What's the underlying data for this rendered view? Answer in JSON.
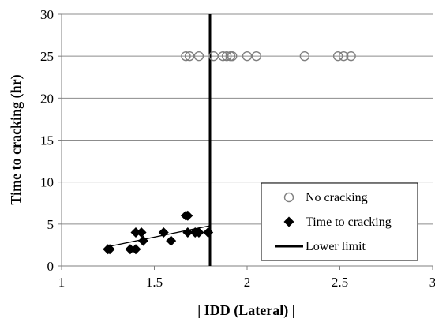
{
  "chart_data": {
    "type": "scatter",
    "xlabel": "| IDD (Lateral) |",
    "ylabel": "Time to cracking (hr)",
    "xlim": [
      1,
      3
    ],
    "ylim": [
      0,
      30
    ],
    "x_ticks": [
      "1",
      "1.5",
      "2",
      "2.5",
      "3"
    ],
    "y_ticks": [
      "0",
      "5",
      "10",
      "15",
      "20",
      "25",
      "30"
    ],
    "grid": "horizontal",
    "legend_position": "bottom-right",
    "series": [
      {
        "name": "No cracking",
        "marker": "open-circle",
        "color": "#7f7f7f",
        "points": [
          [
            1.67,
            25
          ],
          [
            1.69,
            25
          ],
          [
            1.74,
            25
          ],
          [
            1.82,
            25
          ],
          [
            1.87,
            25
          ],
          [
            1.89,
            25
          ],
          [
            1.91,
            25
          ],
          [
            1.92,
            25
          ],
          [
            2.0,
            25
          ],
          [
            2.05,
            25
          ],
          [
            2.31,
            25
          ],
          [
            2.49,
            25
          ],
          [
            2.52,
            25
          ],
          [
            2.56,
            25
          ]
        ]
      },
      {
        "name": "Time to cracking",
        "marker": "filled-diamond",
        "color": "#000000",
        "points": [
          [
            1.25,
            2
          ],
          [
            1.26,
            2
          ],
          [
            1.37,
            2
          ],
          [
            1.4,
            2
          ],
          [
            1.4,
            4
          ],
          [
            1.43,
            4
          ],
          [
            1.44,
            3
          ],
          [
            1.55,
            4
          ],
          [
            1.59,
            3
          ],
          [
            1.67,
            6
          ],
          [
            1.68,
            6
          ],
          [
            1.68,
            4
          ],
          [
            1.72,
            4
          ],
          [
            1.74,
            4
          ],
          [
            1.79,
            4
          ]
        ],
        "trendline": [
          [
            1.25,
            2.3
          ],
          [
            1.8,
            4.8
          ]
        ]
      },
      {
        "name": "Lower limit",
        "marker": "line",
        "color": "#000000",
        "x": 1.8
      }
    ]
  }
}
